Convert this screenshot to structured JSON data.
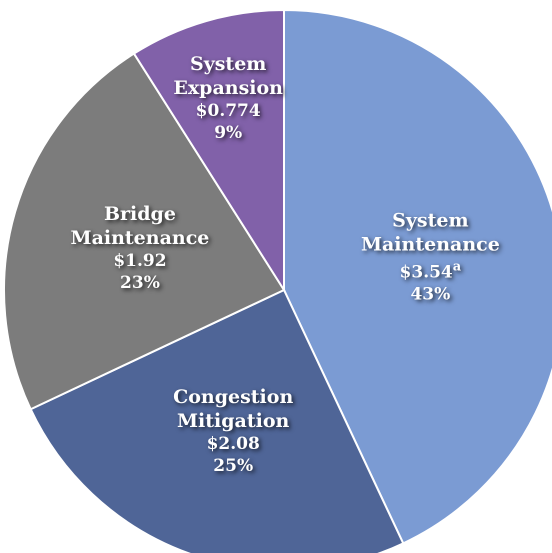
{
  "chart_data": {
    "type": "pie",
    "categories": [
      "System Maintenance",
      "Congestion Mitigation",
      "Bridge Maintenance",
      "System Expansion"
    ],
    "values": [
      43,
      25,
      23,
      9
    ],
    "value_labels": [
      "43%",
      "25%",
      "23%",
      "9%"
    ],
    "amount_labels": [
      "$3.54",
      "$2.08",
      "$1.92",
      "$0.774"
    ],
    "footnote_mark": "a",
    "colors": [
      "#7b9bd3",
      "#4f6597",
      "#7c7c7c",
      "#8161a9"
    ]
  }
}
